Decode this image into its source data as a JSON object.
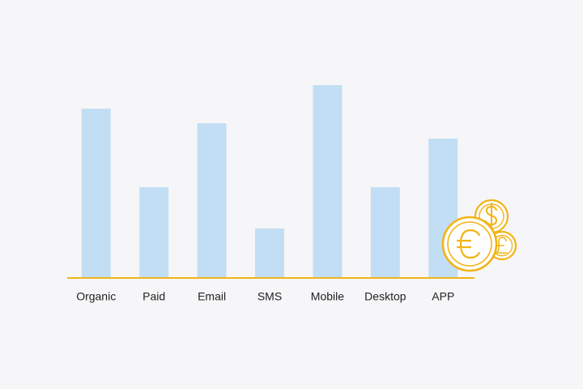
{
  "chart_data": {
    "type": "bar",
    "categories": [
      "Organic",
      "Paid",
      "Email",
      "SMS",
      "Mobile",
      "Desktop",
      "APP"
    ],
    "values": [
      209,
      112,
      191,
      61,
      238,
      112,
      172
    ],
    "color": "#c2def4",
    "axis_color": "#f2b416",
    "ylim": [
      0,
      250
    ],
    "grid": false
  }
}
